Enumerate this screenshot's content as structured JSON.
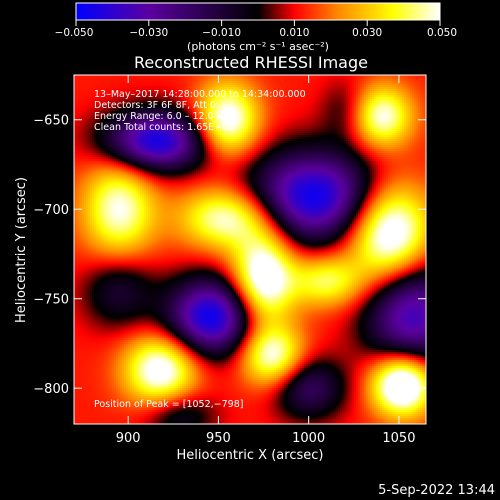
{
  "chart_data": {
    "type": "heatmap",
    "title": "Reconstructed RHESSI Image",
    "xlabel": "Heliocentric X (arcsec)",
    "ylabel": "Heliocentric Y (arcsec)",
    "xlim": [
      870,
      1065
    ],
    "ylim": [
      -820,
      -625
    ],
    "x_ticks": [
      900,
      950,
      1000,
      1050
    ],
    "x_tick_labels": [
      "900",
      "950",
      "1000",
      "1050"
    ],
    "y_ticks": [
      -650,
      -700,
      -750,
      -800
    ],
    "y_tick_labels": [
      "−650",
      "−700",
      "−750",
      "−800"
    ],
    "colorbar": {
      "range": [
        -0.05,
        0.05
      ],
      "ticks": [
        -0.05,
        -0.03,
        -0.01,
        0.01,
        0.03,
        0.05
      ],
      "tick_labels": [
        "−0.050",
        "−0.030",
        "−0.010",
        "0.010",
        "0.030",
        "0.050"
      ],
      "unit_label": "(photons cm⁻² s⁻¹ asec⁻²)",
      "colors": [
        "#0000ff",
        "#5a00a0",
        "#000000",
        "#ff0000",
        "#ff8800",
        "#ffff00",
        "#ffffff"
      ]
    },
    "annotations": [
      "13–May–2017 14:28:00.000 to 14:34:00.000",
      "Detectors: 3F 6F 8F, Att 0",
      "Energy Range: 6.0 – 12.0 keV",
      "Clean    Total counts: 1.65E+05"
    ],
    "peak_label": "Position of Peak = [1052,−798]",
    "peak": [
      1052,
      -798
    ],
    "grid": false,
    "features": [
      {
        "x": 915,
        "y": -662,
        "amp": -0.058,
        "sx": 20,
        "sy": 12
      },
      {
        "x": 1003,
        "y": -693,
        "amp": -0.06,
        "sx": 25,
        "sy": 18
      },
      {
        "x": 946,
        "y": -760,
        "amp": -0.06,
        "sx": 17,
        "sy": 15
      },
      {
        "x": 895,
        "y": -745,
        "amp": -0.022,
        "sx": 14,
        "sy": 15
      },
      {
        "x": 1057,
        "y": -758,
        "amp": -0.05,
        "sx": 18,
        "sy": 22
      },
      {
        "x": 1000,
        "y": -800,
        "amp": -0.03,
        "sx": 14,
        "sy": 12
      },
      {
        "x": 928,
        "y": -815,
        "amp": -0.02,
        "sx": 14,
        "sy": 10
      },
      {
        "x": 1022,
        "y": -645,
        "amp": -0.015,
        "sx": 10,
        "sy": 12
      },
      {
        "x": 1045,
        "y": -714,
        "amp": 0.055,
        "sx": 16,
        "sy": 20
      },
      {
        "x": 1052,
        "y": -798,
        "amp": 0.06,
        "sx": 12,
        "sy": 12
      },
      {
        "x": 955,
        "y": -650,
        "amp": 0.045,
        "sx": 12,
        "sy": 14
      },
      {
        "x": 1040,
        "y": -648,
        "amp": 0.04,
        "sx": 12,
        "sy": 12
      },
      {
        "x": 895,
        "y": -700,
        "amp": 0.038,
        "sx": 14,
        "sy": 20
      },
      {
        "x": 975,
        "y": -738,
        "amp": 0.05,
        "sx": 12,
        "sy": 18
      },
      {
        "x": 918,
        "y": -790,
        "amp": 0.045,
        "sx": 14,
        "sy": 14
      },
      {
        "x": 980,
        "y": -782,
        "amp": 0.04,
        "sx": 12,
        "sy": 12
      },
      {
        "x": 955,
        "y": -705,
        "amp": 0.04,
        "sx": 18,
        "sy": 12
      },
      {
        "x": 1010,
        "y": -740,
        "amp": 0.03,
        "sx": 14,
        "sy": 10
      }
    ]
  },
  "footer": {
    "timestamp": "5-Sep-2022 13:44"
  }
}
